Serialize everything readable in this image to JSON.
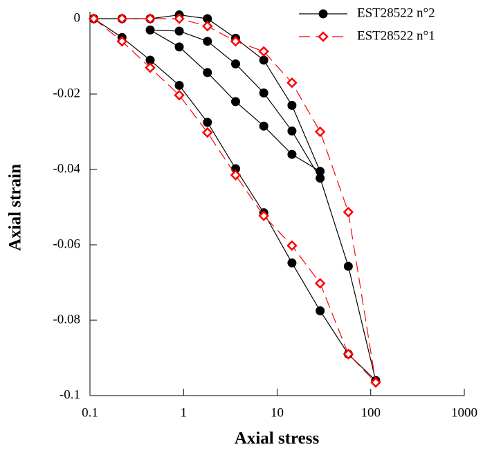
{
  "chart_data": {
    "type": "line",
    "xlabel": "Axial stress",
    "ylabel": "Axial strain",
    "xscale": "log",
    "xlim": [
      0.1,
      1000
    ],
    "xticks": [
      0.1,
      1,
      10,
      100,
      1000
    ],
    "ylim": [
      -0.1,
      0
    ],
    "yticks": [
      0,
      -0.02,
      -0.04,
      -0.06,
      -0.08,
      -0.1
    ],
    "legend": "upper right",
    "series": [
      {
        "name": "EST28522 n°2",
        "color": "#000000",
        "marker": "circle",
        "dashed": false,
        "x": [
          0.11,
          0.22,
          0.44,
          0.9,
          1.8,
          3.6,
          7.2,
          14.4,
          28.8,
          14.4,
          7.2,
          3.6,
          1.8,
          0.9,
          0.44,
          0.9,
          1.8,
          3.6,
          7.2,
          14.4,
          28.8,
          57.6,
          113,
          null,
          0.11,
          0.22,
          0.44,
          0.9,
          1.8,
          3.6,
          7.2,
          14.4,
          28.8,
          57.6,
          113
        ],
        "values": [
          0,
          0,
          0,
          0.001,
          0,
          -0.0052,
          -0.011,
          -0.023,
          -0.0405,
          -0.036,
          -0.0285,
          -0.022,
          -0.0143,
          -0.0075,
          -0.003,
          -0.0033,
          -0.006,
          -0.012,
          -0.0197,
          -0.0298,
          -0.0423,
          -0.0657,
          -0.096,
          null,
          0,
          -0.005,
          -0.011,
          -0.0177,
          -0.0275,
          -0.0398,
          -0.0515,
          -0.0648,
          -0.0775,
          -0.089,
          -0.096
        ]
      },
      {
        "name": "EST28522 n°1",
        "color": "#ff0000",
        "marker": "diamond",
        "dashed": true,
        "x": [
          0.11,
          0.22,
          0.44,
          0.9,
          1.8,
          3.6,
          7.2,
          14.4,
          28.8,
          57.6,
          113,
          null,
          0.22,
          0.44,
          0.9,
          1.8,
          3.6,
          7.2,
          14.4,
          28.8,
          57.6,
          113
        ],
        "values": [
          0,
          -0.006,
          -0.013,
          -0.0203,
          -0.0302,
          -0.0415,
          -0.0523,
          -0.0602,
          -0.0702,
          -0.089,
          -0.0965,
          null,
          0,
          0,
          0,
          -0.002,
          -0.006,
          -0.0087,
          -0.017,
          -0.03,
          -0.0513,
          -0.0965
        ]
      }
    ]
  }
}
